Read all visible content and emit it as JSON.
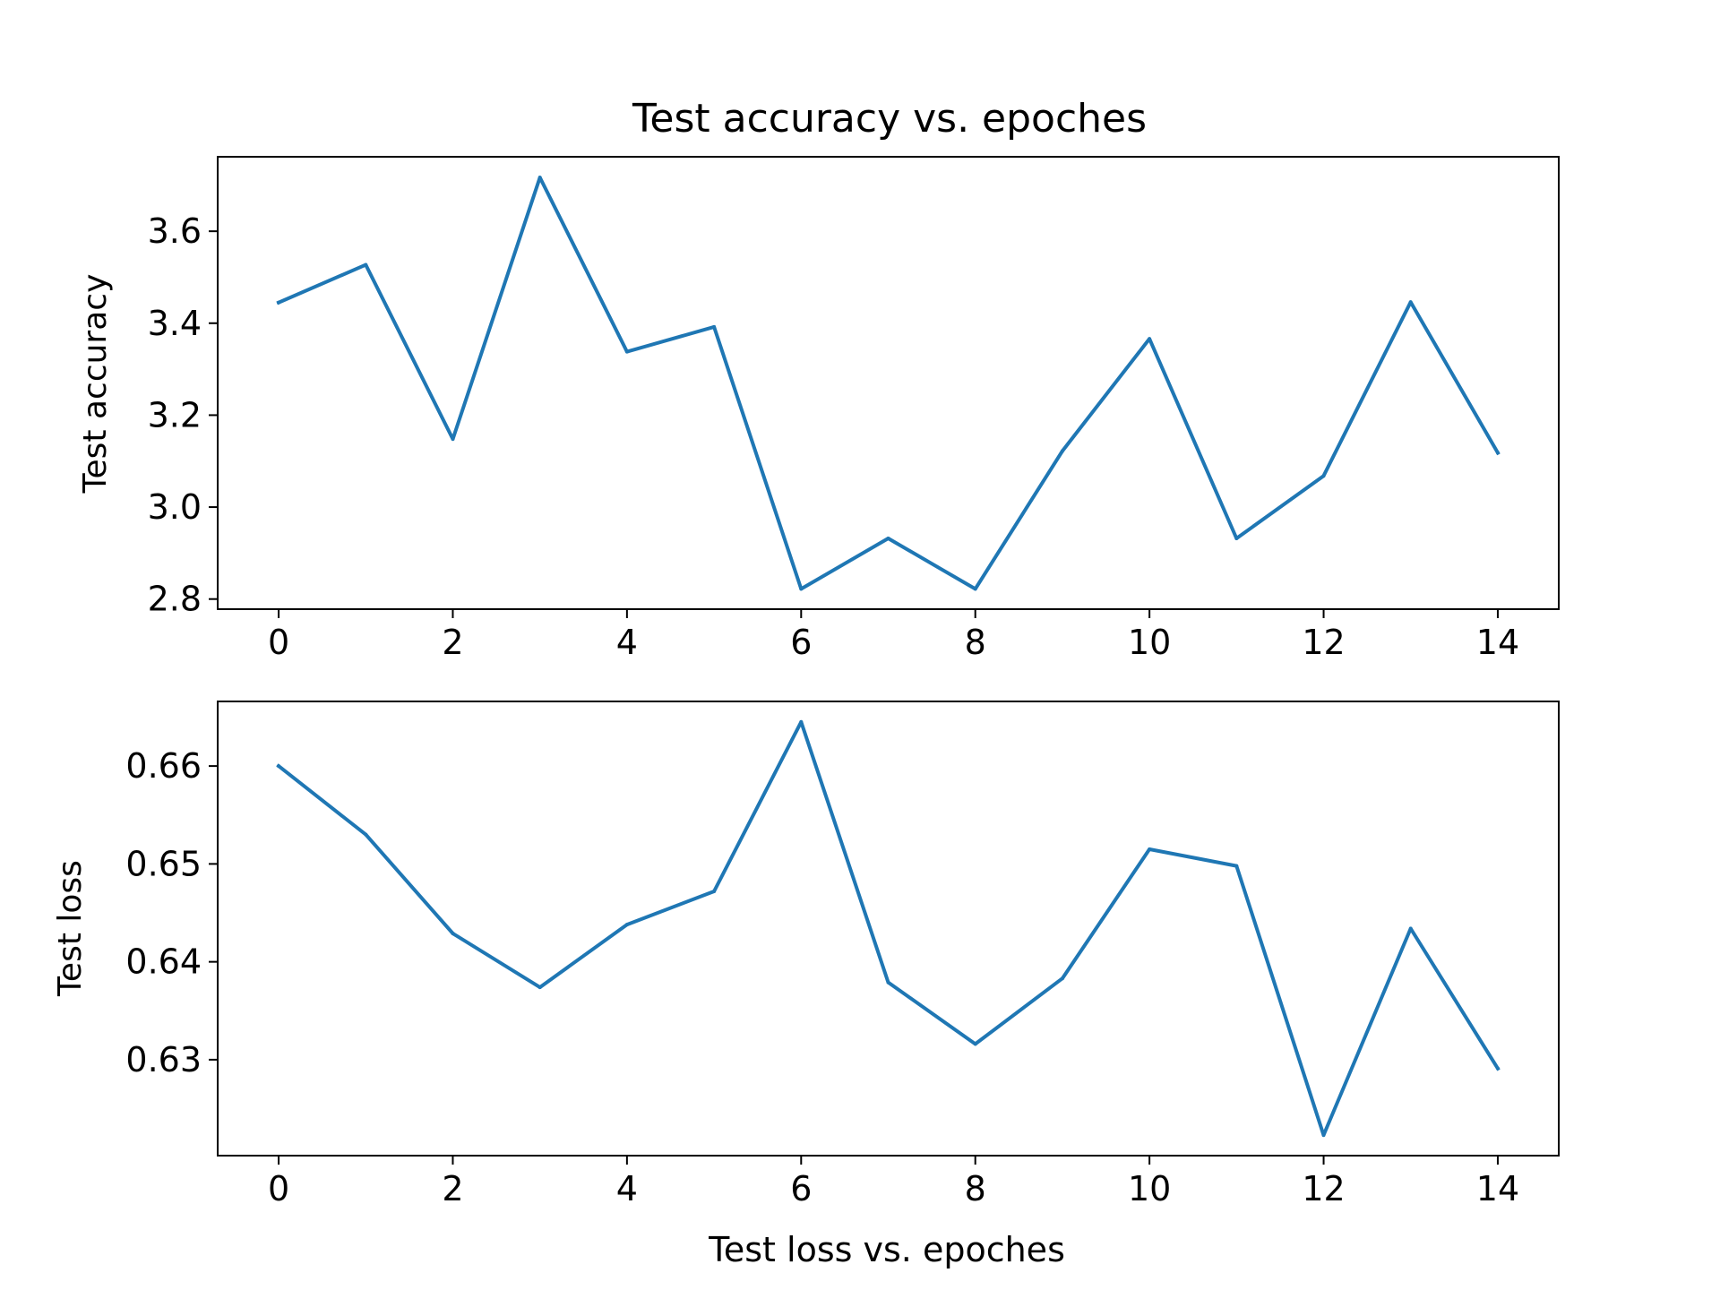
{
  "figure": {
    "background": "#ffffff",
    "line_color": "#1f77b4"
  },
  "chart_data": [
    {
      "type": "line",
      "title": "Test accuracy vs. epoches",
      "xlabel": "",
      "ylabel": "Test accuracy",
      "x": [
        0,
        1,
        2,
        3,
        4,
        5,
        6,
        7,
        8,
        9,
        10,
        11,
        12,
        13,
        14
      ],
      "series": [
        {
          "values": [
            3.445,
            3.527,
            3.148,
            3.717,
            3.338,
            3.392,
            2.822,
            2.932,
            2.822,
            3.122,
            3.366,
            2.932,
            3.068,
            3.446,
            3.118
          ]
        }
      ],
      "xlim": [
        -0.7,
        14.7
      ],
      "ylim": [
        2.778,
        3.762
      ],
      "xticks": [
        0,
        2,
        4,
        6,
        8,
        10,
        12,
        14
      ],
      "xtick_labels": [
        "0",
        "2",
        "4",
        "6",
        "8",
        "10",
        "12",
        "14"
      ],
      "yticks": [
        2.8,
        3.0,
        3.2,
        3.4,
        3.6
      ],
      "ytick_labels": [
        "2.8",
        "3.0",
        "3.2",
        "3.4",
        "3.6"
      ],
      "grid": false,
      "legend": "none"
    },
    {
      "type": "line",
      "title": "",
      "xlabel": "Test loss vs. epoches",
      "ylabel": "Test loss",
      "x": [
        0,
        1,
        2,
        3,
        4,
        5,
        6,
        7,
        8,
        9,
        10,
        11,
        12,
        13,
        14
      ],
      "series": [
        {
          "values": [
            0.66,
            0.653,
            0.6429,
            0.6374,
            0.6438,
            0.6472,
            0.6645,
            0.6379,
            0.6316,
            0.6383,
            0.6515,
            0.6498,
            0.6223,
            0.6434,
            0.6291
          ]
        }
      ],
      "xlim": [
        -0.7,
        14.7
      ],
      "ylim": [
        0.6202,
        0.6666
      ],
      "xticks": [
        0,
        2,
        4,
        6,
        8,
        10,
        12,
        14
      ],
      "xtick_labels": [
        "0",
        "2",
        "4",
        "6",
        "8",
        "10",
        "12",
        "14"
      ],
      "yticks": [
        0.63,
        0.64,
        0.65,
        0.66
      ],
      "ytick_labels": [
        "0.63",
        "0.64",
        "0.65",
        "0.66"
      ],
      "grid": false,
      "legend": "none"
    }
  ]
}
